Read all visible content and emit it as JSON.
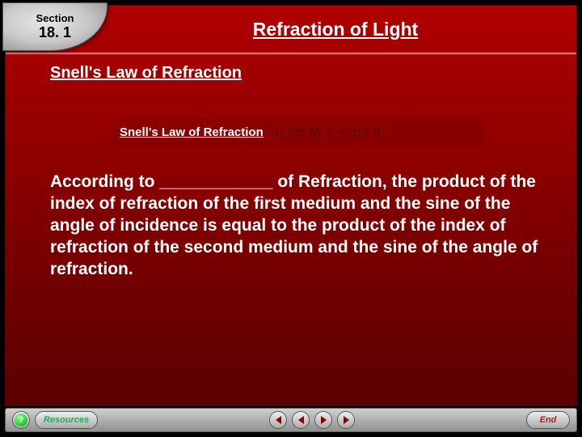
{
  "header": {
    "section_label": "Section",
    "section_number": "18. 1",
    "title": "Refraction of Light"
  },
  "subtitle": "Snell's Law of Refraction",
  "equation": {
    "label": "Snell's Law of Refraction",
    "formula": "n₁ sin θ₁ = n₂sin θ₂"
  },
  "body": "According to ____________ of Refraction, the product of the index of refraction of the first medium and the sine of the angle of incidence is equal to the product of the index of refraction of the second medium and the sine of the angle of refraction.",
  "footer": {
    "help": "?",
    "resources": "Resources",
    "end": "End"
  },
  "colors": {
    "panel_red_top": "#b00000",
    "panel_red_bottom": "#5a0000",
    "text_white": "#ffffff",
    "formula_dark": "#4a0000",
    "footer_grad_top": "#d0d0d0",
    "footer_grad_bottom": "#909090"
  }
}
